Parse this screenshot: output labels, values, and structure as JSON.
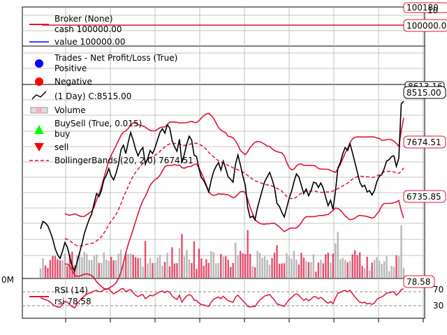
{
  "chart_data": [
    {
      "type": "line",
      "title": "Broker (None)",
      "series": [
        {
          "name": "cash 100000.00",
          "color": "#dc143c",
          "last_label": "100000.00",
          "values": [
            100000,
            100000
          ]
        },
        {
          "name": "value 100000.00",
          "color": "#0000ff",
          "values": [
            100000,
            100000
          ]
        }
      ],
      "y_tick_labels": [
        "100180",
        "10"
      ]
    },
    {
      "type": "scatter",
      "title": "Trades - Net Profit/Loss (True)",
      "legend": [
        {
          "name": "Positive",
          "color": "#0000ff"
        },
        {
          "name": "Negative",
          "color": "#ff0000"
        }
      ],
      "values": []
    },
    {
      "type": "line",
      "title": "(1 Day) C:8515.00",
      "legend": [
        {
          "name": "(1 Day) C:8515.00",
          "color": "#000000"
        },
        {
          "name": "Volume",
          "color": "#dc143c"
        },
        {
          "name": "BuySell (True, 0.015)",
          "color": "#000000"
        },
        {
          "name": "buy",
          "color": "#00ff00"
        },
        {
          "name": "sell",
          "color": "#ff0000"
        },
        {
          "name": "BollingerBands (20, 2.0) 7674.51",
          "color": "#dc143c"
        }
      ],
      "x_count": 150,
      "close": [
        6820,
        6920,
        6900,
        6860,
        6780,
        6690,
        6560,
        6480,
        6430,
        6520,
        6640,
        6580,
        6450,
        6320,
        6260,
        6380,
        6500,
        6620,
        6760,
        6860,
        6950,
        7020,
        7160,
        7290,
        7250,
        7330,
        7470,
        7530,
        7620,
        7520,
        7470,
        7560,
        7680,
        7870,
        7930,
        7820,
        7970,
        8100,
        8000,
        7880,
        7790,
        7860,
        7900,
        7680,
        7760,
        7860,
        7820,
        7900,
        8000,
        8100,
        8150,
        8090,
        8200,
        8160,
        7990,
        7910,
        7850,
        8010,
        7700,
        7810,
        7950,
        8050,
        8000,
        7800,
        7780,
        7620,
        7500,
        7460,
        7390,
        7310,
        7460,
        7580,
        7650,
        7700,
        7600,
        7720,
        7620,
        7510,
        7480,
        7440,
        7680,
        7800,
        7670,
        7520,
        7400,
        7110,
        6970,
        6990,
        6940,
        7100,
        7220,
        7340,
        7450,
        7510,
        7570,
        7480,
        7370,
        7160,
        7120,
        7040,
        6980,
        7100,
        7230,
        7320,
        7450,
        7550,
        7510,
        7400,
        7290,
        7350,
        7260,
        7330,
        7440,
        7430,
        7370,
        7430,
        7360,
        7240,
        7130,
        7200,
        7080,
        7320,
        7630,
        7700,
        7820,
        7900,
        7860,
        7950,
        7830,
        7700,
        7570,
        7440,
        7380,
        7400,
        7310,
        7330,
        7270,
        7330,
        7450,
        7520,
        7540,
        7620,
        7720,
        7740,
        7780,
        7790,
        7650,
        7760,
        8480,
        8515
      ],
      "bb_mid_last": 7674.51,
      "volume_scale_labels": [
        "0M"
      ],
      "price_labels": [
        "8613.16",
        "8515.00",
        "7674.51",
        "6735.85"
      ]
    },
    {
      "type": "line",
      "title": "RSI (14)",
      "series": [
        {
          "name": "rsi 78.58",
          "color": "#dc143c"
        }
      ],
      "last_label": "78.58",
      "ylim": [
        0,
        100
      ],
      "y_tick_labels": [
        "70",
        "30"
      ],
      "values": [
        52,
        50,
        47,
        45,
        40,
        34,
        29,
        26,
        25,
        34,
        42,
        40,
        33,
        27,
        24,
        36,
        44,
        52,
        58,
        63,
        66,
        68,
        72,
        74,
        70,
        71,
        76,
        77,
        78,
        70,
        64,
        68,
        72,
        78,
        79,
        70,
        74,
        76,
        68,
        60,
        56,
        60,
        62,
        50,
        55,
        60,
        58,
        62,
        66,
        70,
        72,
        67,
        72,
        68,
        58,
        52,
        48,
        60,
        40,
        50,
        58,
        62,
        58,
        46,
        45,
        38,
        33,
        32,
        30,
        28,
        40,
        48,
        52,
        55,
        50,
        57,
        50,
        44,
        42,
        40,
        55,
        60,
        52,
        44,
        38,
        28,
        26,
        28,
        27,
        38,
        46,
        52,
        58,
        60,
        62,
        54,
        46,
        35,
        33,
        30,
        28,
        38,
        48,
        53,
        60,
        64,
        60,
        52,
        45,
        50,
        44,
        49,
        56,
        55,
        50,
        54,
        49,
        42,
        37,
        42,
        36,
        52,
        66,
        68,
        72,
        74,
        70,
        74,
        64,
        55,
        47,
        40,
        38,
        40,
        35,
        37,
        34,
        38,
        48,
        53,
        55,
        60,
        66,
        67,
        69,
        70,
        60,
        66,
        76,
        78.58
      ]
    }
  ],
  "x_tick_count": 9
}
